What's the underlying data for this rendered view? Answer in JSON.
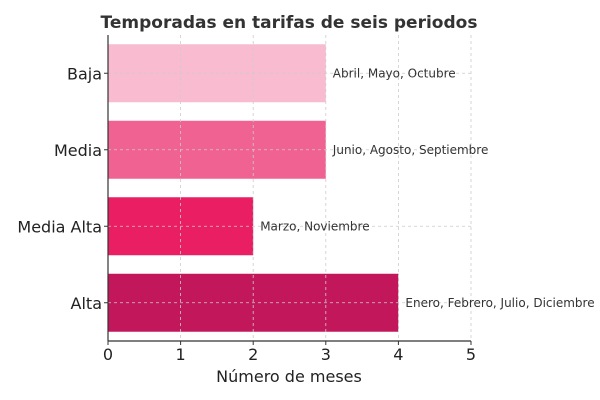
{
  "chart_data": {
    "type": "bar",
    "orientation": "horizontal",
    "title": "Temporadas en tarifas de seis periodos",
    "xlabel": "Número de meses",
    "ylabel": "",
    "xlim": [
      0,
      5
    ],
    "xticks": [
      "0",
      "1",
      "2",
      "3",
      "4",
      "5"
    ],
    "grid": true,
    "categories": [
      "Baja",
      "Media",
      "Media Alta",
      "Alta"
    ],
    "values": [
      3,
      3,
      2,
      4
    ],
    "data_labels": [
      "Abril, Mayo, Octubre",
      "Junio, Agosto, Septiembre",
      "Marzo, Noviembre",
      "Enero, Febrero, Julio, Diciembre"
    ],
    "colors": [
      "#f8bbd0",
      "#f06292",
      "#e91e63",
      "#c2185b"
    ]
  }
}
